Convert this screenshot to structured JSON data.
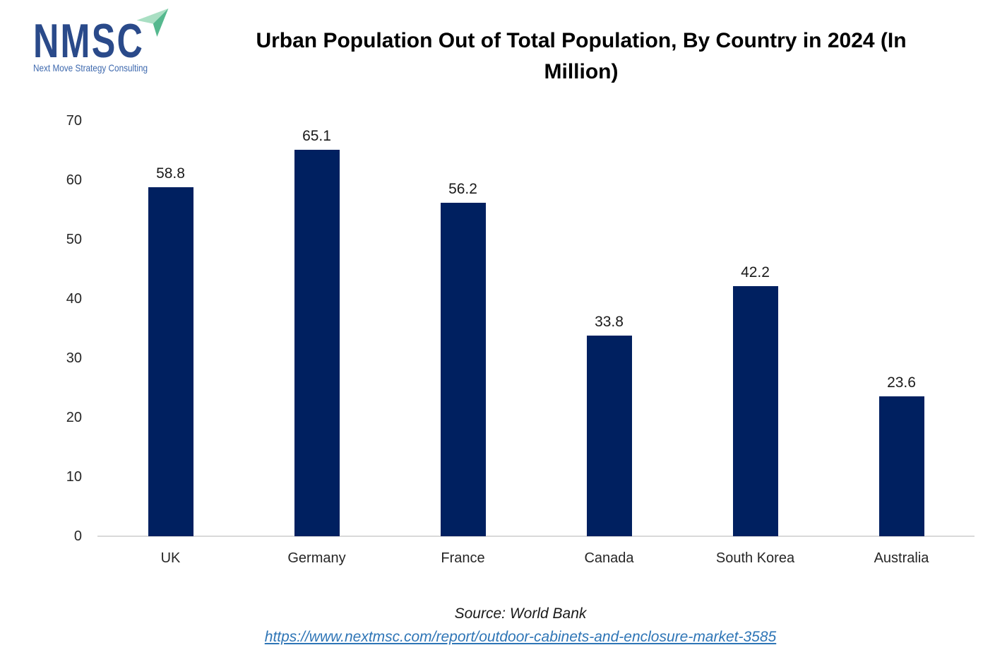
{
  "logo": {
    "acronym": "NMSC",
    "tagline": "Next Move Strategy Consulting"
  },
  "header": {
    "title_lines": [
      "Urban Population Out of Total Population, By Country in 2024 (In",
      "Million)"
    ]
  },
  "chart_data": {
    "type": "bar",
    "title": "Urban Population Out of Total Population, By Country in 2024 (In Million)",
    "categories": [
      "UK",
      "Germany",
      "France",
      "Canada",
      "South Korea",
      "Australia"
    ],
    "values": [
      58.8,
      65.1,
      56.2,
      33.8,
      42.2,
      23.6
    ],
    "value_labels": [
      "58.8",
      "65.1",
      "56.2",
      "33.8",
      "42.2",
      "23.6"
    ],
    "xlabel": "",
    "ylabel": "",
    "ylim": [
      0,
      70
    ],
    "yticks": [
      0,
      10,
      20,
      30,
      40,
      50,
      60,
      70
    ],
    "grid": false,
    "legend": false,
    "bar_color": "#002060"
  },
  "footer": {
    "source": "Source: World Bank",
    "url": "https://www.nextmsc.com/report/outdoor-cabinets-and-enclosure-market-3585"
  },
  "colors": {
    "bar": "#002060",
    "axis_line": "#D9D9D9",
    "link": "#2E75B6",
    "title_text": "#000000",
    "label_text": "#262626",
    "logo_navy": "#2A4A8A",
    "logo_blue": "#3E69AE",
    "plane_light": "#A9DFC3",
    "plane_dark": "#55B88E"
  }
}
